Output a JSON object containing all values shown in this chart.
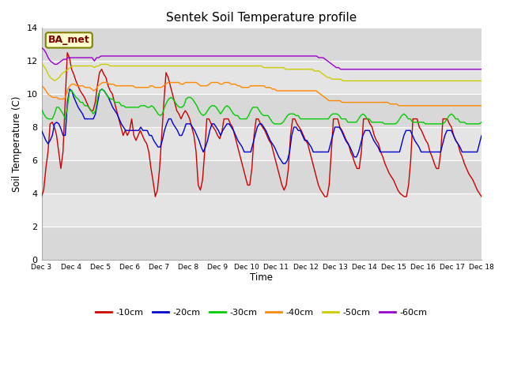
{
  "title": "Sentek Soil Temperature profile",
  "ylabel": "Soil Temperature (C)",
  "xlabel": "Time",
  "ylim": [
    0,
    14
  ],
  "annotation": "BA_met",
  "background_color": "#ffffff",
  "plot_bg_color": "#e8e8e8",
  "legend_labels": [
    "-10cm",
    "-20cm",
    "-30cm",
    "-40cm",
    "-50cm",
    "-60cm"
  ],
  "line_colors": [
    "#cc0000",
    "#0000cc",
    "#00cc00",
    "#ff8800",
    "#cccc00",
    "#9900cc"
  ],
  "x_tick_labels": [
    "Dec 3",
    "Dec 4",
    "Dec 5",
    "Dec 6",
    "Dec 7",
    "Dec 8",
    "Dec 9",
    "Dec 10",
    "Dec 11",
    "Dec 12",
    "Dec 13",
    "Dec 14",
    "Dec 15",
    "Dec 16",
    "Dec 17",
    "Dec 18"
  ],
  "band_colors": [
    "#d8d8d8",
    "#e8e8e8",
    "#d8d8d8",
    "#e8e8e8",
    "#d8d8d8",
    "#e8e8e8",
    "#d8d8d8"
  ],
  "data_10cm": [
    3.8,
    4.2,
    5.5,
    6.5,
    8.2,
    8.3,
    8.0,
    7.5,
    6.5,
    5.5,
    6.5,
    9.5,
    12.5,
    12.2,
    11.5,
    11.2,
    10.8,
    10.5,
    10.2,
    10.0,
    9.8,
    9.5,
    9.2,
    9.0,
    9.0,
    9.5,
    10.5,
    11.3,
    11.5,
    11.2,
    11.0,
    10.5,
    10.2,
    10.0,
    9.5,
    9.0,
    8.5,
    8.0,
    7.5,
    7.8,
    7.5,
    7.8,
    8.5,
    7.5,
    7.2,
    7.5,
    7.8,
    7.5,
    7.2,
    7.0,
    6.5,
    5.5,
    4.7,
    3.8,
    4.2,
    5.5,
    7.5,
    9.5,
    11.3,
    11.0,
    10.5,
    10.0,
    9.5,
    9.0,
    8.8,
    8.5,
    8.8,
    9.0,
    8.8,
    8.5,
    8.0,
    7.5,
    6.5,
    4.5,
    4.2,
    4.8,
    6.5,
    8.5,
    8.5,
    8.2,
    8.0,
    7.8,
    7.5,
    7.3,
    7.7,
    8.5,
    8.5,
    8.5,
    8.2,
    8.0,
    7.5,
    7.0,
    6.5,
    6.0,
    5.5,
    5.0,
    4.5,
    4.5,
    5.5,
    7.5,
    8.5,
    8.5,
    8.2,
    8.0,
    7.8,
    7.5,
    7.2,
    7.0,
    6.5,
    6.0,
    5.5,
    5.0,
    4.5,
    4.2,
    4.5,
    5.5,
    7.5,
    8.5,
    8.5,
    8.2,
    8.0,
    7.8,
    7.5,
    7.2,
    7.0,
    6.5,
    6.0,
    5.5,
    5.0,
    4.5,
    4.2,
    4.0,
    3.8,
    3.8,
    4.5,
    6.5,
    8.5,
    8.5,
    8.5,
    8.0,
    7.8,
    7.5,
    7.2,
    7.0,
    6.5,
    6.2,
    5.8,
    5.5,
    5.5,
    6.5,
    8.5,
    8.5,
    8.5,
    8.2,
    8.0,
    7.5,
    7.2,
    7.0,
    6.5,
    6.2,
    5.8,
    5.5,
    5.2,
    5.0,
    4.8,
    4.5,
    4.2,
    4.0,
    3.9,
    3.8,
    3.8,
    4.5,
    6.0,
    8.5,
    8.5,
    8.5,
    8.0,
    7.8,
    7.5,
    7.2,
    7.0,
    6.5,
    6.2,
    5.8,
    5.5,
    5.5,
    6.5,
    8.5,
    8.5,
    8.5,
    8.2,
    8.0,
    7.5,
    7.2,
    7.0,
    6.5,
    6.2,
    5.8,
    5.5,
    5.2,
    5.0,
    4.8,
    4.5,
    4.2,
    4.0,
    3.8
  ],
  "data_20cm": [
    7.8,
    7.5,
    7.2,
    7.0,
    7.2,
    7.5,
    8.2,
    8.3,
    8.2,
    7.9,
    7.5,
    7.5,
    9.5,
    10.3,
    10.2,
    9.8,
    9.5,
    9.2,
    9.0,
    8.8,
    8.5,
    8.5,
    8.5,
    8.5,
    8.5,
    8.8,
    9.5,
    10.2,
    10.3,
    10.2,
    10.0,
    9.8,
    9.5,
    9.2,
    9.0,
    8.8,
    8.5,
    8.2,
    8.0,
    7.8,
    7.8,
    7.8,
    7.8,
    7.8,
    7.8,
    7.8,
    8.0,
    7.8,
    7.8,
    7.8,
    7.5,
    7.5,
    7.2,
    7.0,
    6.8,
    6.8,
    7.2,
    7.8,
    8.2,
    8.5,
    8.5,
    8.2,
    8.0,
    7.8,
    7.5,
    7.5,
    7.8,
    8.2,
    8.2,
    8.2,
    8.0,
    7.8,
    7.5,
    7.2,
    6.8,
    6.5,
    6.8,
    7.2,
    7.8,
    8.2,
    8.2,
    8.0,
    7.8,
    7.5,
    7.8,
    8.0,
    8.2,
    8.2,
    8.0,
    7.8,
    7.5,
    7.2,
    7.0,
    6.8,
    6.5,
    6.5,
    6.5,
    6.5,
    7.0,
    7.5,
    8.0,
    8.2,
    8.2,
    8.0,
    7.8,
    7.5,
    7.2,
    7.0,
    6.8,
    6.5,
    6.2,
    6.0,
    5.8,
    5.8,
    6.0,
    6.5,
    7.5,
    8.0,
    8.0,
    7.8,
    7.8,
    7.5,
    7.2,
    7.2,
    7.0,
    6.8,
    6.5,
    6.5,
    6.5,
    6.5,
    6.5,
    6.5,
    6.5,
    6.5,
    7.0,
    7.5,
    8.0,
    8.0,
    8.0,
    7.8,
    7.5,
    7.2,
    7.0,
    6.8,
    6.5,
    6.2,
    6.2,
    6.5,
    7.0,
    7.5,
    7.8,
    7.8,
    7.8,
    7.5,
    7.2,
    7.0,
    6.8,
    6.5,
    6.5,
    6.5,
    6.5,
    6.5,
    6.5,
    6.5,
    6.5,
    6.5,
    6.5,
    7.0,
    7.5,
    7.8,
    7.8,
    7.8,
    7.5,
    7.2,
    7.0,
    6.8,
    6.5,
    6.5,
    6.5,
    6.5,
    6.5,
    6.5,
    6.5,
    6.5,
    6.5,
    6.5,
    7.0,
    7.5,
    7.8,
    7.8,
    7.8,
    7.5,
    7.2,
    7.0,
    6.8,
    6.5,
    6.5,
    6.5,
    6.5,
    6.5,
    6.5,
    6.5,
    6.5,
    7.0,
    7.5
  ],
  "data_30cm": [
    9.1,
    8.8,
    8.6,
    8.5,
    8.5,
    8.5,
    8.8,
    9.2,
    9.2,
    9.0,
    8.8,
    8.5,
    9.2,
    10.2,
    10.2,
    10.0,
    9.8,
    9.7,
    9.5,
    9.5,
    9.3,
    9.3,
    9.2,
    9.0,
    8.8,
    9.0,
    9.8,
    10.2,
    10.3,
    10.2,
    10.0,
    9.8,
    9.7,
    9.7,
    9.5,
    9.5,
    9.5,
    9.3,
    9.3,
    9.2,
    9.2,
    9.2,
    9.2,
    9.2,
    9.2,
    9.2,
    9.3,
    9.3,
    9.3,
    9.2,
    9.2,
    9.3,
    9.2,
    9.0,
    8.8,
    8.7,
    8.8,
    9.2,
    9.5,
    9.7,
    9.8,
    9.7,
    9.5,
    9.3,
    9.2,
    9.2,
    9.3,
    9.7,
    9.8,
    9.8,
    9.7,
    9.5,
    9.3,
    9.0,
    8.8,
    8.7,
    8.8,
    9.0,
    9.2,
    9.3,
    9.3,
    9.2,
    9.0,
    8.8,
    9.0,
    9.2,
    9.3,
    9.2,
    9.0,
    8.8,
    8.7,
    8.7,
    8.5,
    8.5,
    8.5,
    8.5,
    8.7,
    9.0,
    9.2,
    9.2,
    9.2,
    9.0,
    8.8,
    8.7,
    8.7,
    8.7,
    8.5,
    8.3,
    8.2,
    8.2,
    8.2,
    8.2,
    8.3,
    8.5,
    8.7,
    8.8,
    8.8,
    8.8,
    8.7,
    8.7,
    8.5,
    8.5,
    8.5,
    8.5,
    8.5,
    8.5,
    8.5,
    8.5,
    8.5,
    8.5,
    8.5,
    8.5,
    8.5,
    8.5,
    8.7,
    8.8,
    8.8,
    8.8,
    8.7,
    8.5,
    8.5,
    8.5,
    8.3,
    8.3,
    8.3,
    8.3,
    8.3,
    8.5,
    8.7,
    8.8,
    8.7,
    8.5,
    8.5,
    8.3,
    8.3,
    8.3,
    8.3,
    8.3,
    8.3,
    8.2,
    8.2,
    8.2,
    8.2,
    8.2,
    8.2,
    8.3,
    8.5,
    8.7,
    8.8,
    8.7,
    8.5,
    8.5,
    8.3,
    8.3,
    8.3,
    8.3,
    8.3,
    8.3,
    8.2,
    8.2,
    8.2,
    8.2,
    8.2,
    8.2,
    8.2,
    8.2,
    8.2,
    8.3,
    8.5,
    8.7,
    8.8,
    8.7,
    8.5,
    8.5,
    8.3,
    8.3,
    8.3,
    8.2,
    8.2,
    8.2,
    8.2,
    8.2,
    8.2,
    8.2,
    8.3
  ],
  "data_40cm": [
    10.5,
    10.4,
    10.2,
    10.0,
    9.9,
    9.8,
    9.8,
    9.8,
    9.7,
    9.7,
    9.7,
    9.8,
    10.3,
    10.5,
    10.6,
    10.6,
    10.5,
    10.5,
    10.5,
    10.5,
    10.4,
    10.4,
    10.4,
    10.3,
    10.2,
    10.3,
    10.5,
    10.6,
    10.7,
    10.7,
    10.7,
    10.6,
    10.6,
    10.6,
    10.5,
    10.5,
    10.5,
    10.5,
    10.5,
    10.5,
    10.5,
    10.5,
    10.5,
    10.4,
    10.4,
    10.4,
    10.4,
    10.4,
    10.4,
    10.4,
    10.5,
    10.5,
    10.4,
    10.4,
    10.4,
    10.4,
    10.5,
    10.6,
    10.7,
    10.7,
    10.7,
    10.7,
    10.7,
    10.7,
    10.6,
    10.6,
    10.7,
    10.7,
    10.7,
    10.7,
    10.7,
    10.7,
    10.6,
    10.5,
    10.5,
    10.5,
    10.5,
    10.6,
    10.7,
    10.7,
    10.7,
    10.7,
    10.6,
    10.6,
    10.7,
    10.7,
    10.7,
    10.6,
    10.6,
    10.6,
    10.5,
    10.5,
    10.4,
    10.4,
    10.4,
    10.4,
    10.5,
    10.5,
    10.5,
    10.5,
    10.5,
    10.5,
    10.5,
    10.4,
    10.4,
    10.4,
    10.3,
    10.3,
    10.2,
    10.2,
    10.2,
    10.2,
    10.2,
    10.2,
    10.2,
    10.2,
    10.2,
    10.2,
    10.2,
    10.2,
    10.2,
    10.2,
    10.2,
    10.2,
    10.2,
    10.2,
    10.2,
    10.1,
    10.0,
    9.9,
    9.8,
    9.7,
    9.6,
    9.6,
    9.6,
    9.6,
    9.6,
    9.6,
    9.5,
    9.5,
    9.5,
    9.5,
    9.5,
    9.5,
    9.5,
    9.5,
    9.5,
    9.5,
    9.5,
    9.5,
    9.5,
    9.5,
    9.5,
    9.5,
    9.5,
    9.5,
    9.5,
    9.5,
    9.5,
    9.5,
    9.4,
    9.4,
    9.4,
    9.4,
    9.3,
    9.3,
    9.3,
    9.3,
    9.3,
    9.3,
    9.3,
    9.3,
    9.3,
    9.3,
    9.3,
    9.3,
    9.3,
    9.3,
    9.3,
    9.3,
    9.3,
    9.3,
    9.3,
    9.3,
    9.3,
    9.3,
    9.3,
    9.3,
    9.3,
    9.3,
    9.3,
    9.3,
    9.3,
    9.3,
    9.3,
    9.3,
    9.3,
    9.3,
    9.3,
    9.3,
    9.3,
    9.3,
    9.3
  ],
  "data_50cm": [
    11.9,
    11.7,
    11.5,
    11.2,
    11.0,
    10.9,
    10.8,
    10.9,
    11.0,
    11.2,
    11.3,
    11.4,
    11.5,
    11.6,
    11.7,
    11.7,
    11.7,
    11.7,
    11.7,
    11.7,
    11.7,
    11.7,
    11.7,
    11.7,
    11.6,
    11.7,
    11.7,
    11.8,
    11.8,
    11.8,
    11.8,
    11.7,
    11.7,
    11.7,
    11.7,
    11.7,
    11.7,
    11.7,
    11.7,
    11.7,
    11.7,
    11.7,
    11.7,
    11.7,
    11.7,
    11.7,
    11.7,
    11.7,
    11.7,
    11.7,
    11.7,
    11.7,
    11.7,
    11.7,
    11.7,
    11.7,
    11.7,
    11.7,
    11.7,
    11.7,
    11.7,
    11.7,
    11.7,
    11.7,
    11.7,
    11.7,
    11.7,
    11.7,
    11.7,
    11.7,
    11.7,
    11.7,
    11.7,
    11.7,
    11.7,
    11.7,
    11.7,
    11.7,
    11.7,
    11.7,
    11.7,
    11.7,
    11.7,
    11.7,
    11.7,
    11.7,
    11.7,
    11.7,
    11.7,
    11.7,
    11.7,
    11.7,
    11.7,
    11.7,
    11.7,
    11.7,
    11.7,
    11.7,
    11.7,
    11.7,
    11.7,
    11.6,
    11.6,
    11.6,
    11.6,
    11.6,
    11.6,
    11.6,
    11.6,
    11.6,
    11.6,
    11.5,
    11.5,
    11.5,
    11.5,
    11.5,
    11.5,
    11.5,
    11.5,
    11.5,
    11.5,
    11.5,
    11.5,
    11.5,
    11.4,
    11.4,
    11.4,
    11.3,
    11.2,
    11.1,
    11.0,
    11.0,
    10.9,
    10.9,
    10.9,
    10.9,
    10.9,
    10.8,
    10.8,
    10.8,
    10.8,
    10.8,
    10.8,
    10.8,
    10.8,
    10.8,
    10.8,
    10.8,
    10.8,
    10.8,
    10.8,
    10.8,
    10.8,
    10.8,
    10.8,
    10.8,
    10.8,
    10.8,
    10.8,
    10.8,
    10.8,
    10.8,
    10.8,
    10.8,
    10.8,
    10.8,
    10.8,
    10.8,
    10.8,
    10.8,
    10.8,
    10.8,
    10.8,
    10.8,
    10.8,
    10.8,
    10.8,
    10.8,
    10.8,
    10.8,
    10.8,
    10.8,
    10.8,
    10.8,
    10.8,
    10.8,
    10.8,
    10.8,
    10.8,
    10.8,
    10.8,
    10.8,
    10.8,
    10.8,
    10.8,
    10.8,
    10.8,
    10.8,
    10.8,
    10.8,
    10.8
  ],
  "data_60cm": [
    12.8,
    12.7,
    12.5,
    12.2,
    12.0,
    11.9,
    11.8,
    11.8,
    11.9,
    12.0,
    12.1,
    12.1,
    12.2,
    12.2,
    12.2,
    12.2,
    12.2,
    12.2,
    12.2,
    12.2,
    12.2,
    12.2,
    12.2,
    12.2,
    12.0,
    12.2,
    12.2,
    12.3,
    12.3,
    12.3,
    12.3,
    12.3,
    12.3,
    12.3,
    12.3,
    12.3,
    12.3,
    12.3,
    12.3,
    12.3,
    12.3,
    12.3,
    12.3,
    12.3,
    12.3,
    12.3,
    12.3,
    12.3,
    12.3,
    12.3,
    12.3,
    12.3,
    12.3,
    12.3,
    12.3,
    12.3,
    12.3,
    12.3,
    12.3,
    12.3,
    12.3,
    12.3,
    12.3,
    12.3,
    12.3,
    12.3,
    12.3,
    12.3,
    12.3,
    12.3,
    12.3,
    12.3,
    12.3,
    12.3,
    12.3,
    12.3,
    12.3,
    12.3,
    12.3,
    12.3,
    12.3,
    12.3,
    12.3,
    12.3,
    12.3,
    12.3,
    12.3,
    12.3,
    12.3,
    12.3,
    12.3,
    12.3,
    12.3,
    12.3,
    12.3,
    12.3,
    12.3,
    12.3,
    12.3,
    12.3,
    12.3,
    12.3,
    12.3,
    12.3,
    12.3,
    12.3,
    12.3,
    12.3,
    12.3,
    12.3,
    12.3,
    12.3,
    12.3,
    12.3,
    12.3,
    12.3,
    12.3,
    12.3,
    12.3,
    12.3,
    12.3,
    12.3,
    12.3,
    12.3,
    12.3,
    12.3,
    12.2,
    12.2,
    12.2,
    12.1,
    12.0,
    11.9,
    11.8,
    11.7,
    11.6,
    11.6,
    11.5,
    11.5,
    11.5,
    11.5,
    11.5,
    11.5,
    11.5,
    11.5,
    11.5,
    11.5,
    11.5,
    11.5,
    11.5,
    11.5,
    11.5,
    11.5,
    11.5,
    11.5,
    11.5,
    11.5,
    11.5,
    11.5,
    11.5,
    11.5,
    11.5,
    11.5,
    11.5,
    11.5,
    11.5,
    11.5,
    11.5,
    11.5,
    11.5,
    11.5,
    11.5,
    11.5,
    11.5,
    11.5,
    11.5,
    11.5,
    11.5,
    11.5,
    11.5,
    11.5,
    11.5,
    11.5,
    11.5,
    11.5,
    11.5,
    11.5,
    11.5,
    11.5,
    11.5,
    11.5,
    11.5,
    11.5,
    11.5,
    11.5,
    11.5,
    11.5,
    11.5,
    11.5,
    11.5,
    11.5,
    11.5
  ]
}
